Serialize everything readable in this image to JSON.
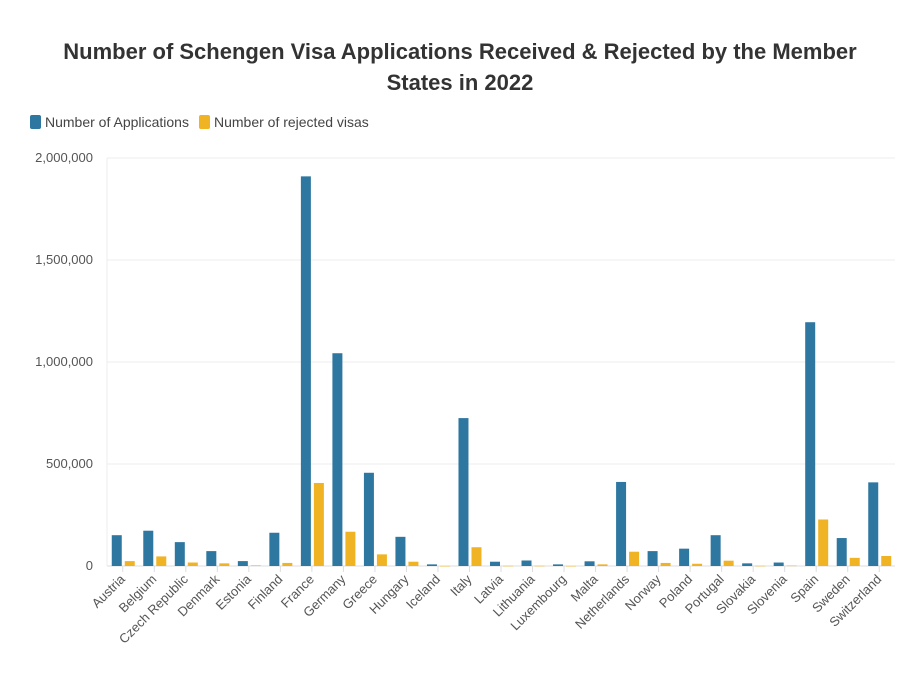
{
  "chart_data": {
    "type": "bar",
    "title": "Number of Schengen Visa Applications Received & Rejected by the Member States in 2022",
    "xlabel": "",
    "ylabel": "",
    "ylim": [
      0,
      2000000
    ],
    "yticks": [
      0,
      500000,
      1000000,
      1500000,
      2000000
    ],
    "ytick_labels": [
      "0",
      "500,000",
      "1,000,000",
      "1,500,000",
      "2,000,000"
    ],
    "grid": true,
    "legend": "top-left",
    "categories": [
      "Austria",
      "Belgium",
      "Czech Republic",
      "Denmark",
      "Estonia",
      "Finland",
      "France",
      "Germany",
      "Greece",
      "Hungary",
      "Iceland",
      "Italy",
      "Latvia",
      "Lithuania",
      "Luxembourg",
      "Malta",
      "Netherlands",
      "Norway",
      "Poland",
      "Portugal",
      "Slovakia",
      "Slovenia",
      "Spain",
      "Sweden",
      "Switzerland"
    ],
    "series": [
      {
        "name": "Number of Applications",
        "color": "#2e77a0",
        "values": [
          151000,
          173000,
          117000,
          73000,
          24000,
          163000,
          1910000,
          1043000,
          457000,
          143000,
          8000,
          725000,
          21000,
          27000,
          8000,
          23000,
          412000,
          73000,
          85000,
          151000,
          13000,
          17000,
          1195000,
          137000,
          410000
        ]
      },
      {
        "name": "Number of rejected visas",
        "color": "#f0b323",
        "values": [
          24000,
          47000,
          17000,
          13000,
          3000,
          15000,
          407000,
          168000,
          57000,
          21000,
          500,
          92000,
          1000,
          1000,
          500,
          8000,
          70000,
          15000,
          11000,
          26000,
          1000,
          2000,
          228000,
          40000,
          49000
        ]
      }
    ]
  }
}
